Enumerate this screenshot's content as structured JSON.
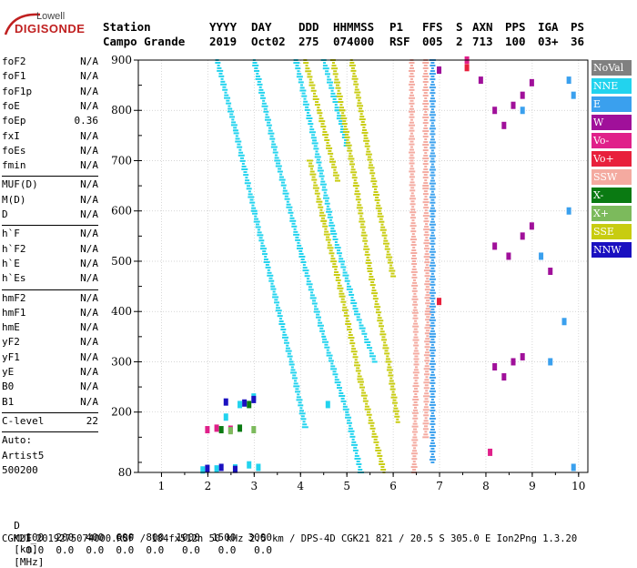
{
  "logo": {
    "brand_top": "Lowell",
    "brand_main": "DIGISONDE"
  },
  "header": {
    "columns": [
      {
        "label": "Station",
        "value": "Campo Grande"
      },
      {
        "label": "YYYY",
        "value": "2019"
      },
      {
        "label": "DAY",
        "value": "Oct02"
      },
      {
        "label": "DDD",
        "value": "275"
      },
      {
        "label": "HHMMSS",
        "value": "074000"
      },
      {
        "label": "P1",
        "value": "RSF"
      },
      {
        "label": "FFS",
        "value": "005"
      },
      {
        "label": "S",
        "value": "2"
      },
      {
        "label": "AXN",
        "value": "713"
      },
      {
        "label": "PPS",
        "value": "100"
      },
      {
        "label": "IGA",
        "value": "03+"
      },
      {
        "label": "PS",
        "value": "36"
      }
    ]
  },
  "parameters": {
    "group1": [
      {
        "name": "foF2",
        "value": "N/A"
      },
      {
        "name": "foF1",
        "value": "N/A"
      },
      {
        "name": "foF1p",
        "value": "N/A"
      },
      {
        "name": "foE",
        "value": "N/A"
      },
      {
        "name": "foEp",
        "value": "0.36"
      },
      {
        "name": "fxI",
        "value": "N/A"
      },
      {
        "name": "foEs",
        "value": "N/A"
      },
      {
        "name": "fmin",
        "value": "N/A"
      }
    ],
    "group2": [
      {
        "name": "MUF(D)",
        "value": "N/A"
      },
      {
        "name": "M(D)",
        "value": "N/A"
      },
      {
        "name": "D",
        "value": "N/A"
      }
    ],
    "group3": [
      {
        "name": "h`F",
        "value": "N/A"
      },
      {
        "name": "h`F2",
        "value": "N/A"
      },
      {
        "name": "h`E",
        "value": "N/A"
      },
      {
        "name": "h`Es",
        "value": "N/A"
      }
    ],
    "group4": [
      {
        "name": "hmF2",
        "value": "N/A"
      },
      {
        "name": "hmF1",
        "value": "N/A"
      },
      {
        "name": "hmE",
        "value": "N/A"
      },
      {
        "name": "yF2",
        "value": "N/A"
      },
      {
        "name": "yF1",
        "value": "N/A"
      },
      {
        "name": "yE",
        "value": "N/A"
      },
      {
        "name": "B0",
        "value": "N/A"
      },
      {
        "name": "B1",
        "value": "N/A"
      }
    ],
    "clevel": {
      "name": "C-level",
      "value": "22"
    },
    "auto": {
      "label": "Auto:",
      "program": "Artist5",
      "version": "500200"
    }
  },
  "legend": [
    {
      "label": "NoVal",
      "color": "#808080"
    },
    {
      "label": "NNE",
      "color": "#22d3ee"
    },
    {
      "label": "E",
      "color": "#3aa0ee"
    },
    {
      "label": "W",
      "color": "#a0109a"
    },
    {
      "label": "Vo-",
      "color": "#e0208a"
    },
    {
      "label": "Vo+",
      "color": "#e8203c"
    },
    {
      "label": "SSW",
      "color": "#f4aaa0"
    },
    {
      "label": "X-",
      "color": "#0a7a12"
    },
    {
      "label": "X+",
      "color": "#7cba5c"
    },
    {
      "label": "SSE",
      "color": "#c8cc10"
    },
    {
      "label": "NNW",
      "color": "#1a10c0"
    }
  ],
  "footer": {
    "d_label": "D",
    "d_values": [
      "100",
      "200",
      "400",
      "600",
      "800",
      "1000",
      "1500",
      "3000"
    ],
    "d_unit": "[km]",
    "muf_label": "MUF",
    "muf_values": [
      "0.0",
      "0.0",
      "0.0",
      "0.0",
      "0.0",
      "0.0",
      "0.0",
      "0.0"
    ],
    "muf_unit": "[MHz]",
    "file_line": "CGK21_2019275074000.RSF / 184fx512h 50 kHz 2.5 km / DPS-4D CGK21 821 / 20.5 S 305.0 E Ion2Png 1.3.20"
  },
  "chart_data": {
    "type": "scatter",
    "xlim": [
      0.5,
      10.2
    ],
    "ylim": [
      80,
      900
    ],
    "x_ticks": [
      1,
      2,
      3,
      4,
      5,
      6,
      7,
      8,
      9,
      10
    ],
    "y_ticks": [
      80,
      200,
      300,
      400,
      500,
      600,
      700,
      800,
      900
    ],
    "grid": true,
    "legend_position": "right",
    "series": [
      {
        "name": "NNE",
        "color": "#22d3ee",
        "traces": [
          {
            "x": [
              3.0,
              3.5,
              4.0,
              4.5,
              5.0,
              5.3
            ],
            "y": [
              900,
              700,
              520,
              350,
              200,
              80
            ]
          },
          {
            "x": [
              2.2,
              2.6,
              3.0,
              3.4,
              3.8,
              4.1
            ],
            "y": [
              900,
              760,
              600,
              450,
              300,
              170
            ]
          },
          {
            "x": [
              3.9,
              4.3,
              4.7,
              5.2,
              5.6
            ],
            "y": [
              900,
              740,
              560,
              400,
              300
            ]
          },
          {
            "x": [
              4.5,
              4.8,
              5.0
            ],
            "y": [
              900,
              800,
              730
            ]
          }
        ],
        "spots": [
          {
            "x": 1.9,
            "y": 85
          },
          {
            "x": 2.2,
            "y": 87
          },
          {
            "x": 2.6,
            "y": 89
          },
          {
            "x": 2.9,
            "y": 95
          },
          {
            "x": 3.1,
            "y": 90
          },
          {
            "x": 2.4,
            "y": 190
          },
          {
            "x": 2.7,
            "y": 215
          },
          {
            "x": 3.0,
            "y": 230
          },
          {
            "x": 4.6,
            "y": 215
          }
        ]
      },
      {
        "name": "SSE",
        "color": "#c8cc10",
        "traces": [
          {
            "x": [
              4.7,
              4.9,
              5.2,
              5.5,
              5.9,
              6.1
            ],
            "y": [
              900,
              800,
              650,
              480,
              300,
              180
            ]
          },
          {
            "x": [
              4.2,
              4.5,
              4.9,
              5.3,
              5.8
            ],
            "y": [
              700,
              580,
              430,
              260,
              80
            ]
          },
          {
            "x": [
              5.1,
              5.4,
              5.7,
              6.0
            ],
            "y": [
              900,
              750,
              600,
              470
            ]
          },
          {
            "x": [
              4.1,
              4.4,
              4.8
            ],
            "y": [
              900,
              800,
              660
            ]
          }
        ],
        "spots": []
      },
      {
        "name": "SSW",
        "color": "#f4aaa0",
        "traces": [
          {
            "x": [
              6.4,
              6.4,
              6.45,
              6.5,
              6.45
            ],
            "y": [
              900,
              700,
              500,
              300,
              80
            ]
          },
          {
            "x": [
              6.7,
              6.7,
              6.75,
              6.7
            ],
            "y": [
              900,
              650,
              400,
              150
            ]
          }
        ],
        "spots": []
      },
      {
        "name": "E",
        "color": "#3aa0ee",
        "traces": [
          {
            "x": [
              6.85,
              6.85,
              6.85,
              6.85
            ],
            "y": [
              900,
              600,
              350,
              100
            ]
          }
        ],
        "spots": [
          {
            "x": 8.8,
            "y": 800
          },
          {
            "x": 9.2,
            "y": 510
          },
          {
            "x": 9.4,
            "y": 300
          },
          {
            "x": 9.8,
            "y": 860
          },
          {
            "x": 9.9,
            "y": 830
          },
          {
            "x": 9.8,
            "y": 600
          },
          {
            "x": 9.7,
            "y": 380
          },
          {
            "x": 9.9,
            "y": 90
          }
        ]
      },
      {
        "name": "W",
        "color": "#a0109a",
        "traces": [],
        "spots": [
          {
            "x": 8.2,
            "y": 800
          },
          {
            "x": 8.4,
            "y": 770
          },
          {
            "x": 8.6,
            "y": 810
          },
          {
            "x": 8.8,
            "y": 830
          },
          {
            "x": 8.2,
            "y": 530
          },
          {
            "x": 8.5,
            "y": 510
          },
          {
            "x": 8.8,
            "y": 550
          },
          {
            "x": 9.0,
            "y": 570
          },
          {
            "x": 8.2,
            "y": 290
          },
          {
            "x": 8.4,
            "y": 270
          },
          {
            "x": 8.6,
            "y": 300
          },
          {
            "x": 8.8,
            "y": 310
          },
          {
            "x": 9.0,
            "y": 855
          },
          {
            "x": 9.4,
            "y": 480
          },
          {
            "x": 7.0,
            "y": 880
          },
          {
            "x": 7.9,
            "y": 860
          }
        ]
      },
      {
        "name": "Vo-",
        "color": "#e0208a",
        "traces": [],
        "spots": [
          {
            "x": 2.0,
            "y": 165
          },
          {
            "x": 2.2,
            "y": 168
          },
          {
            "x": 2.5,
            "y": 166
          },
          {
            "x": 7.6,
            "y": 900
          },
          {
            "x": 8.1,
            "y": 120
          }
        ]
      },
      {
        "name": "Vo+",
        "color": "#e8203c",
        "traces": [],
        "spots": [
          {
            "x": 7.0,
            "y": 420
          },
          {
            "x": 7.6,
            "y": 885
          }
        ]
      },
      {
        "name": "X-",
        "color": "#0a7a12",
        "traces": [],
        "spots": [
          {
            "x": 2.3,
            "y": 165
          },
          {
            "x": 2.7,
            "y": 168
          },
          {
            "x": 2.9,
            "y": 215
          }
        ]
      },
      {
        "name": "X+",
        "color": "#7cba5c",
        "traces": [],
        "spots": [
          {
            "x": 2.5,
            "y": 163
          },
          {
            "x": 3.0,
            "y": 165
          }
        ]
      },
      {
        "name": "NNW",
        "color": "#1a10c0",
        "traces": [],
        "spots": [
          {
            "x": 2.4,
            "y": 220
          },
          {
            "x": 2.8,
            "y": 218
          },
          {
            "x": 3.0,
            "y": 225
          },
          {
            "x": 2.0,
            "y": 88
          },
          {
            "x": 2.3,
            "y": 90
          },
          {
            "x": 2.6,
            "y": 86
          }
        ]
      }
    ]
  }
}
